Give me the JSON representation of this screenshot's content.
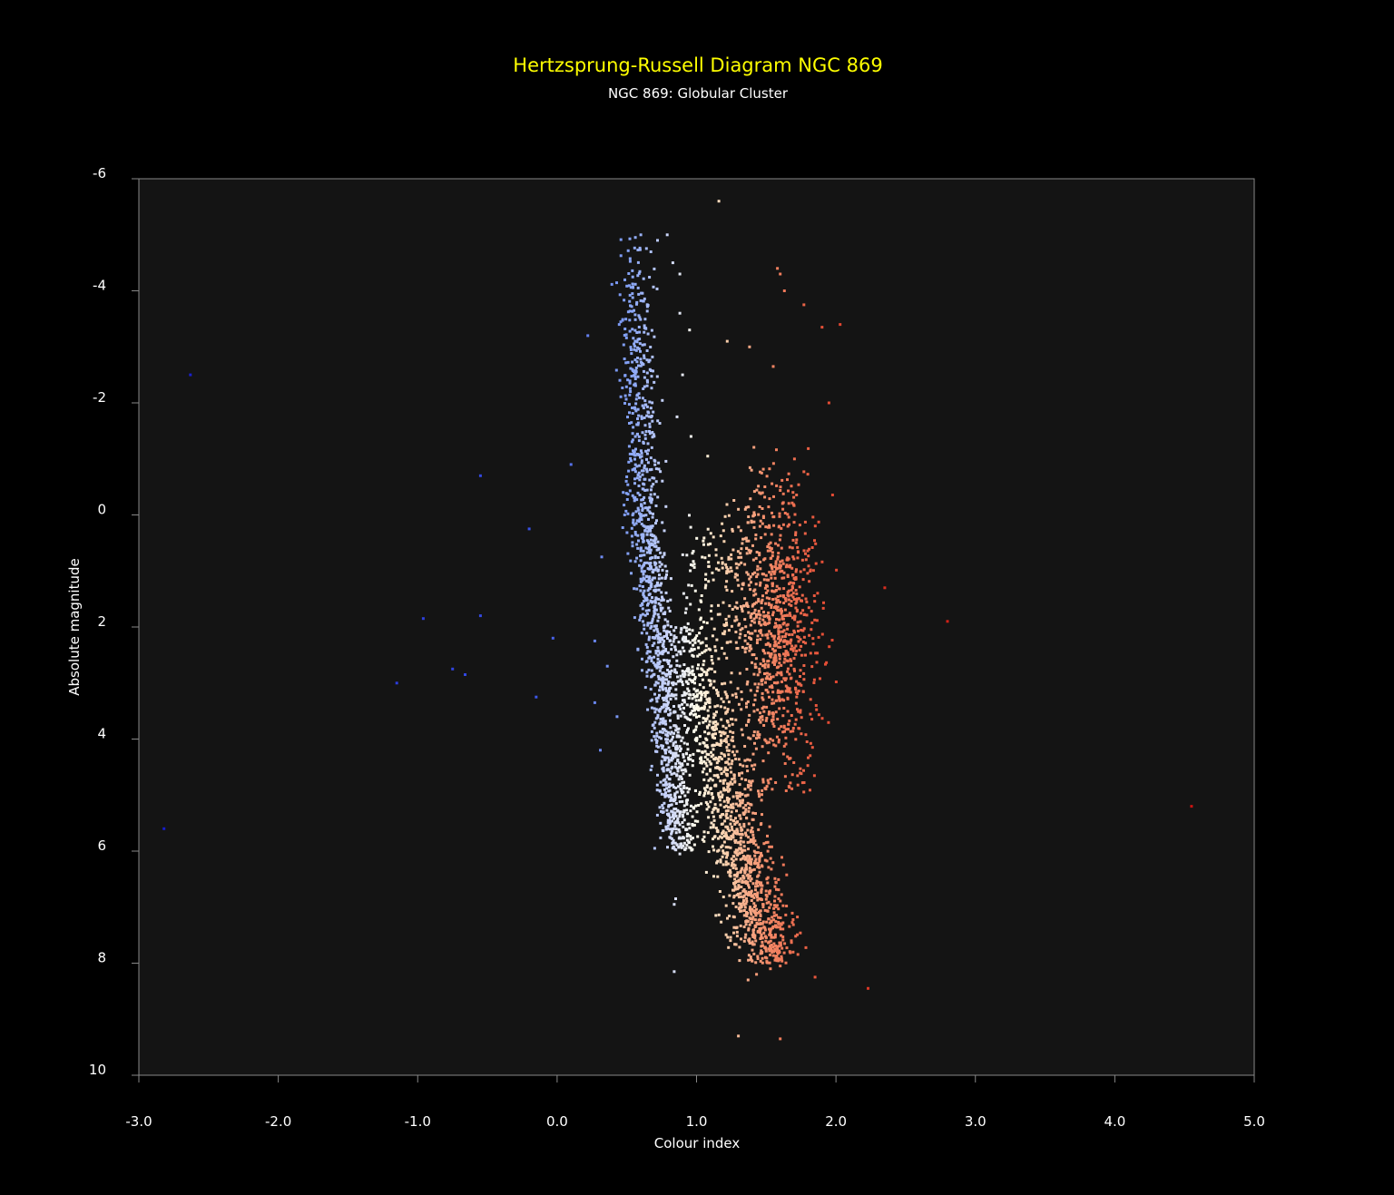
{
  "chart_data": {
    "type": "scatter",
    "title": "Hertzsprung-Russell Diagram NGC 869",
    "subtitle": "NGC 869: Globular Cluster",
    "xlabel": "Colour index",
    "ylabel": "Absolute magnitude",
    "xlim": [
      -3.0,
      5.0
    ],
    "ylim": [
      -6,
      10
    ],
    "y_inverted": true,
    "grid": false,
    "legend": "none",
    "x_ticks": [
      "-3.0",
      "-2.0",
      "-1.0",
      "0.0",
      "1.0",
      "2.0",
      "3.0",
      "4.0",
      "5.0"
    ],
    "y_ticks": [
      "-6",
      "-4",
      "-2",
      "0",
      "2",
      "4",
      "6",
      "8",
      "10"
    ],
    "colormap": "coolwarm by colour index",
    "colors": {
      "background": "#000000",
      "plot_area": "#141414",
      "title": "#ffff00",
      "text": "#ffffff",
      "axis": "#888888"
    },
    "marker_size_px": 3,
    "points": [
      [
        -2.63,
        -2.5
      ],
      [
        -2.82,
        5.6
      ],
      [
        -1.15,
        3.0
      ],
      [
        -0.96,
        1.85
      ],
      [
        -0.75,
        2.75
      ],
      [
        -0.66,
        2.85
      ],
      [
        -0.55,
        1.8
      ],
      [
        -0.55,
        -0.7
      ],
      [
        -0.2,
        0.25
      ],
      [
        -0.15,
        3.25
      ],
      [
        -0.03,
        2.2
      ],
      [
        0.1,
        -0.9
      ],
      [
        0.22,
        -3.2
      ],
      [
        0.27,
        2.25
      ],
      [
        0.27,
        3.35
      ],
      [
        0.31,
        4.2
      ],
      [
        0.32,
        0.75
      ],
      [
        0.36,
        2.7
      ],
      [
        0.43,
        3.6
      ],
      [
        1.16,
        -5.6
      ],
      [
        0.6,
        -5.0
      ],
      [
        0.72,
        -4.9
      ],
      [
        0.79,
        -5.0
      ],
      [
        0.83,
        -4.5
      ],
      [
        0.88,
        -4.3
      ],
      [
        0.88,
        -3.6
      ],
      [
        0.95,
        -3.3
      ],
      [
        1.22,
        -3.1
      ],
      [
        1.38,
        -3.0
      ],
      [
        1.55,
        -2.65
      ],
      [
        1.58,
        -4.4
      ],
      [
        1.6,
        -4.3
      ],
      [
        1.63,
        -4.0
      ],
      [
        1.77,
        -3.75
      ],
      [
        1.9,
        -3.35
      ],
      [
        2.03,
        -3.4
      ],
      [
        1.95,
        -2.0
      ],
      [
        0.9,
        -2.5
      ],
      [
        0.96,
        -1.4
      ],
      [
        0.86,
        -1.75
      ],
      [
        1.08,
        -1.05
      ],
      [
        1.3,
        -0.1
      ],
      [
        1.35,
        -0.1
      ],
      [
        2.35,
        1.3
      ],
      [
        2.8,
        1.9
      ],
      [
        4.55,
        5.2
      ],
      [
        2.23,
        8.45
      ],
      [
        1.85,
        8.25
      ],
      [
        1.3,
        9.3
      ],
      [
        1.6,
        9.35
      ],
      [
        0.84,
        8.15
      ],
      [
        0.84,
        6.95
      ],
      [
        0.85,
        6.85
      ],
      [
        0.88,
        6.05
      ],
      [
        0.7,
        5.95
      ],
      [
        1.37,
        8.3
      ],
      [
        1.43,
        8.2
      ],
      [
        1.53,
        8.1
      ],
      [
        1.6,
        8.05
      ],
      [
        1.68,
        7.6
      ]
    ],
    "generated_series": {
      "blue_branch_points": 1250,
      "blue_branch_x_range": [
        0.4,
        0.95
      ],
      "blue_branch_y_range": [
        -5.0,
        6.0
      ],
      "turnoff_main_sequence_points": 1300,
      "turnoff_main_sequence_x_range": [
        0.85,
        1.6
      ],
      "turnoff_main_sequence_y_range": [
        2.0,
        8.0
      ],
      "red_clump_points": 900,
      "red_clump_x_range": [
        1.25,
        2.05
      ],
      "red_clump_y_range": [
        -1.3,
        5.0
      ],
      "subgiant_points": 180,
      "subgiant_x_range": [
        0.9,
        1.4
      ],
      "subgiant_y_range": [
        0.0,
        2.5
      ]
    }
  }
}
